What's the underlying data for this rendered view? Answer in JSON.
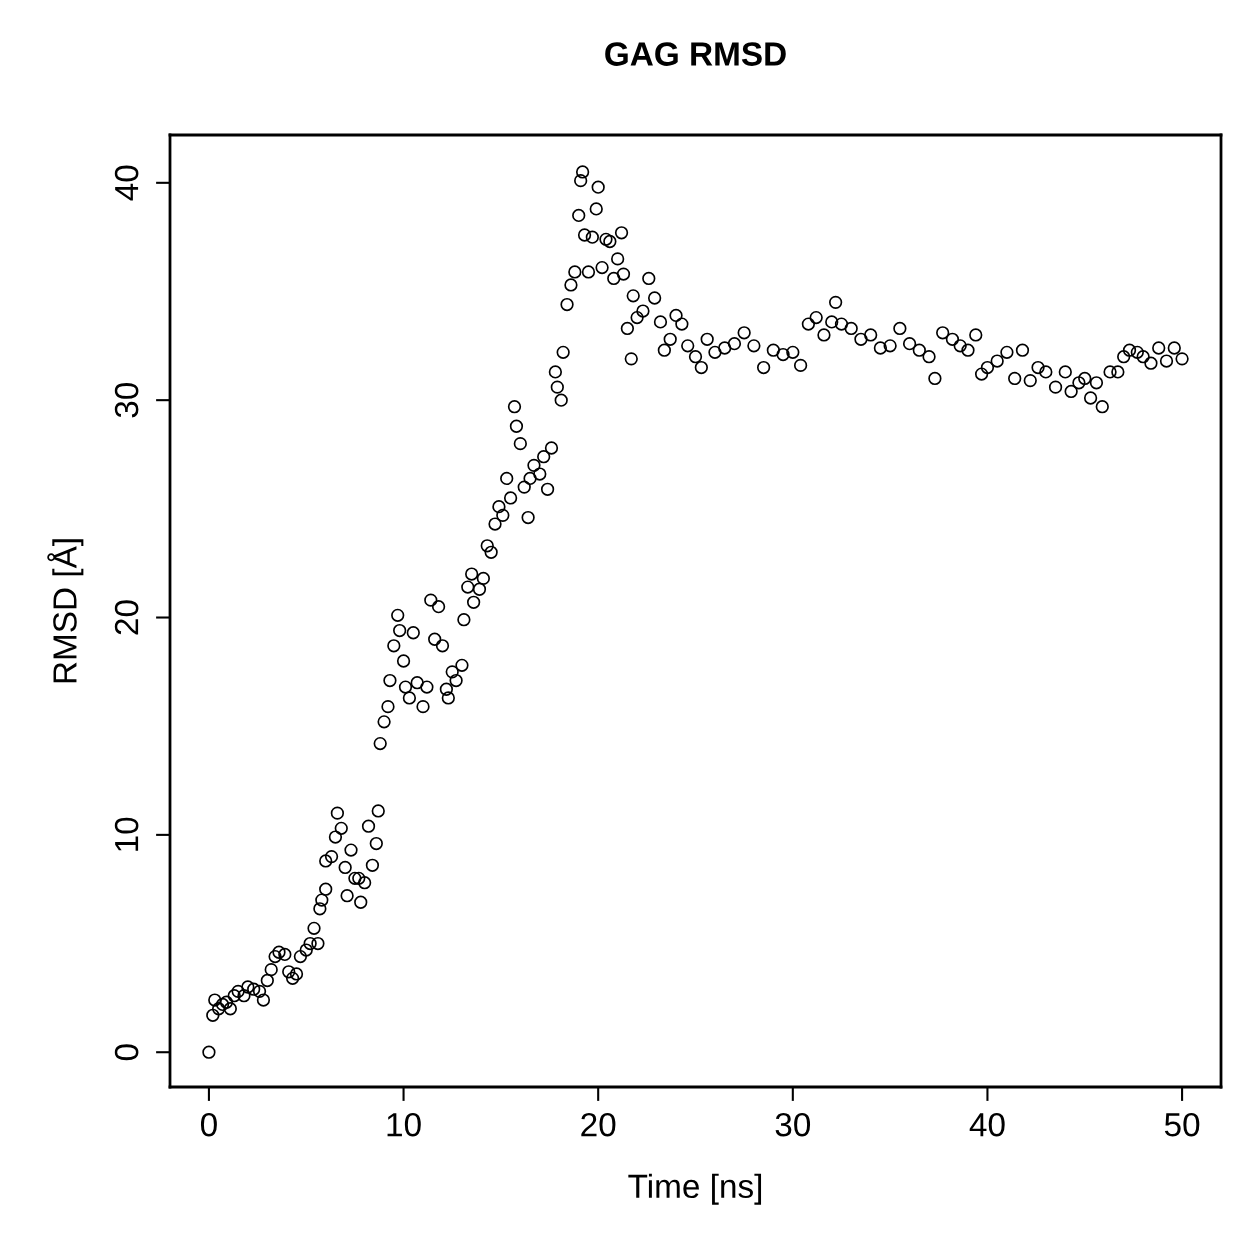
{
  "chart_data": {
    "type": "scatter",
    "title": "GAG RMSD",
    "xlabel": "Time [ns]",
    "ylabel": "RMSD [Å]",
    "xlim": [
      -2,
      52
    ],
    "ylim": [
      -1.6,
      42.2
    ],
    "xticks": [
      0,
      10,
      20,
      30,
      40,
      50
    ],
    "yticks": [
      0,
      10,
      20,
      30,
      40
    ],
    "grid": false,
    "marker": "circle",
    "series": [
      {
        "color": "#000000",
        "x": [
          0,
          0.2,
          0.3,
          0.5,
          0.7,
          0.9,
          1.1,
          1.3,
          1.5,
          1.8,
          2.0,
          2.3,
          2.6,
          2.8,
          3.0,
          3.2,
          3.4,
          3.6,
          3.9,
          4.1,
          4.3,
          4.5,
          4.7,
          5.0,
          5.2,
          5.4,
          5.6,
          5.7,
          5.8,
          6.0,
          6.0,
          6.3,
          6.5,
          6.6,
          6.8,
          7.0,
          7.1,
          7.3,
          7.5,
          7.7,
          7.8,
          8.0,
          8.2,
          8.4,
          8.6,
          8.7,
          8.8,
          9.0,
          9.2,
          9.3,
          9.5,
          9.7,
          9.8,
          10.0,
          10.1,
          10.3,
          10.5,
          10.7,
          11.0,
          11.2,
          11.4,
          11.6,
          11.8,
          12.0,
          12.2,
          12.3,
          12.5,
          12.7,
          13.0,
          13.1,
          13.3,
          13.5,
          13.6,
          13.9,
          14.1,
          14.3,
          14.5,
          14.7,
          14.9,
          15.1,
          15.3,
          15.5,
          15.7,
          15.8,
          16.0,
          16.2,
          16.4,
          16.5,
          16.7,
          17.0,
          17.2,
          17.4,
          17.6,
          17.8,
          17.9,
          18.1,
          18.2,
          18.4,
          18.6,
          18.8,
          19.0,
          19.1,
          19.2,
          19.3,
          19.5,
          19.7,
          19.9,
          20.0,
          20.2,
          20.4,
          20.6,
          20.8,
          21.0,
          21.2,
          21.3,
          21.5,
          21.7,
          21.8,
          22.0,
          22.3,
          22.6,
          22.9,
          23.2,
          23.4,
          23.7,
          24.0,
          24.3,
          24.6,
          25.0,
          25.3,
          25.6,
          26.0,
          26.5,
          27.0,
          27.5,
          28.0,
          28.5,
          29.0,
          29.5,
          30.0,
          30.4,
          30.8,
          31.2,
          31.6,
          32.0,
          32.2,
          32.5,
          33.0,
          33.5,
          34.0,
          34.5,
          35.0,
          35.5,
          36.0,
          36.5,
          37.0,
          37.3,
          37.7,
          38.2,
          38.6,
          39.0,
          39.4,
          39.7,
          40.0,
          40.5,
          41.0,
          41.4,
          41.8,
          42.2,
          42.6,
          43.0,
          43.5,
          44.0,
          44.3,
          44.7,
          45.0,
          45.3,
          45.6,
          45.9,
          46.3,
          46.7,
          47.0,
          47.3,
          47.7,
          48.0,
          48.4,
          48.8,
          49.2,
          49.6,
          50.0
        ],
        "values": [
          0,
          1.7,
          2.4,
          2.0,
          2.2,
          2.3,
          2.0,
          2.6,
          2.8,
          2.6,
          3.0,
          2.9,
          2.8,
          2.4,
          3.3,
          3.8,
          4.4,
          4.6,
          4.5,
          3.7,
          3.4,
          3.6,
          4.4,
          4.7,
          5.0,
          5.7,
          5.0,
          6.6,
          7.0,
          7.5,
          8.8,
          9.0,
          9.9,
          11.0,
          10.3,
          8.5,
          7.2,
          9.3,
          8.0,
          8.0,
          6.9,
          7.8,
          10.4,
          8.6,
          9.6,
          11.1,
          14.2,
          15.2,
          15.9,
          17.1,
          18.7,
          20.1,
          19.4,
          18.0,
          16.8,
          16.3,
          19.3,
          17.0,
          15.9,
          16.8,
          20.8,
          19.0,
          20.5,
          18.7,
          16.7,
          16.3,
          17.5,
          17.1,
          17.8,
          19.9,
          21.4,
          22.0,
          20.7,
          21.3,
          21.8,
          23.3,
          23.0,
          24.3,
          25.1,
          24.7,
          26.4,
          25.5,
          29.7,
          28.8,
          28.0,
          26.0,
          24.6,
          26.4,
          27.0,
          26.6,
          27.4,
          25.9,
          27.8,
          31.3,
          30.6,
          30.0,
          32.2,
          34.4,
          35.3,
          35.9,
          38.5,
          40.1,
          40.5,
          37.6,
          35.9,
          37.5,
          38.8,
          39.8,
          36.1,
          37.4,
          37.3,
          35.6,
          36.5,
          37.7,
          35.8,
          33.3,
          31.9,
          34.8,
          33.8,
          34.1,
          35.6,
          34.7,
          33.6,
          32.3,
          32.8,
          33.9,
          33.5,
          32.5,
          32.0,
          31.5,
          32.8,
          32.2,
          32.4,
          32.6,
          33.1,
          32.5,
          31.5,
          32.3,
          32.1,
          32.2,
          31.6,
          33.5,
          33.8,
          33.0,
          33.6,
          34.5,
          33.5,
          33.3,
          32.8,
          33.0,
          32.4,
          32.5,
          33.3,
          32.6,
          32.3,
          32.0,
          31.0,
          33.1,
          32.8,
          32.5,
          32.3,
          33.0,
          31.2,
          31.5,
          31.8,
          32.2,
          31.0,
          32.3,
          30.9,
          31.5,
          31.3,
          30.6,
          31.3,
          30.4,
          30.8,
          31.0,
          30.1,
          30.8,
          29.7,
          31.3,
          31.3,
          32.0,
          32.3,
          32.2,
          32.0,
          31.7,
          32.4,
          31.8,
          32.4,
          31.9
        ]
      }
    ]
  }
}
